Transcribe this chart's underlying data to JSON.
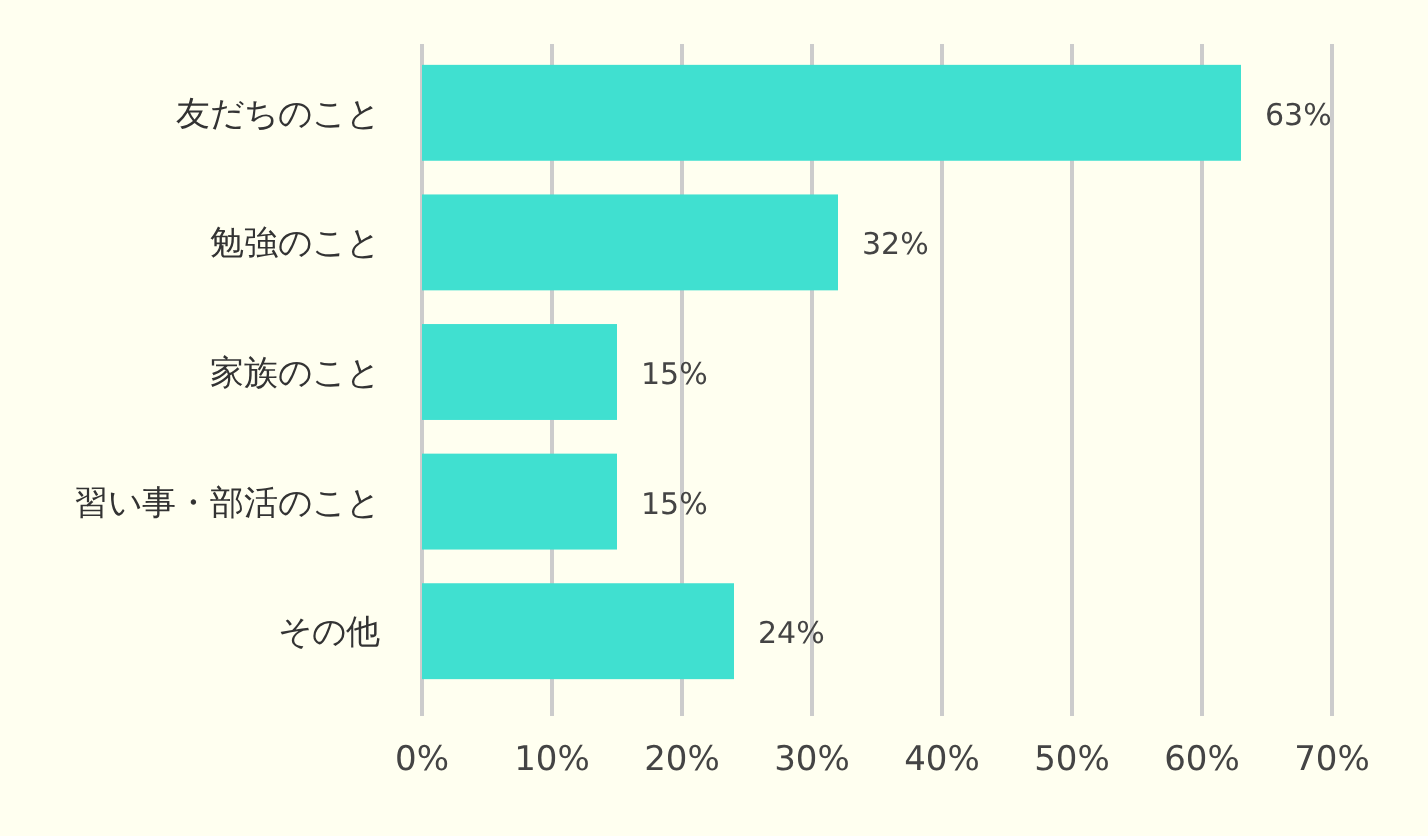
{
  "chart_data": {
    "type": "bar",
    "orientation": "horizontal",
    "categories": [
      "友だちのこと",
      "勉強のこと",
      "家族のこと",
      "習い事・部活のこと",
      "その他"
    ],
    "values": [
      63,
      32,
      15,
      15,
      24
    ],
    "color": "#40e0d0",
    "xlim": [
      0,
      70
    ],
    "xticks": [
      {
        "value": 0,
        "label": "0%"
      },
      {
        "value": 10,
        "label": "10%"
      },
      {
        "value": 20,
        "label": "20%"
      },
      {
        "value": 30,
        "label": "30%"
      },
      {
        "value": 40,
        "label": "40%"
      },
      {
        "value": 50,
        "label": "50%"
      },
      {
        "value": 60,
        "label": "60%"
      },
      {
        "value": 70,
        "label": "70%"
      }
    ],
    "value_labels": [
      "63%",
      "32%",
      "15%",
      "15%",
      "24%"
    ],
    "grid": "x"
  }
}
